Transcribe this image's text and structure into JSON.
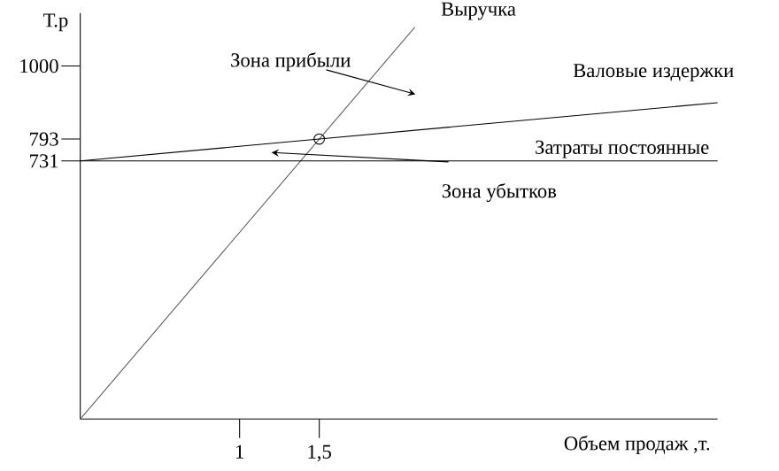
{
  "chart_data": {
    "type": "line",
    "xlabel": "Объем продаж ,т.",
    "ylabel": "Т.р",
    "xlim": [
      0,
      4
    ],
    "ylim": [
      0,
      1150
    ],
    "xticks": [
      1,
      {
        "value": 1.5,
        "label": "1,5"
      }
    ],
    "yticks": [
      731,
      793,
      1000
    ],
    "series": [
      {
        "name": "Выручка",
        "color": "#606060",
        "x": [
          0,
          1.5,
          2.1
        ],
        "values": [
          0,
          793,
          1110
        ],
        "marker": "none"
      },
      {
        "name": "Валовые издержки",
        "color": "#000000",
        "x": [
          0,
          1.5,
          4
        ],
        "values": [
          731,
          793,
          896
        ],
        "marker": "none"
      },
      {
        "type": "scatter",
        "color": "#000000",
        "x": [
          1.5
        ],
        "values": [
          793
        ],
        "marker": "circle"
      }
    ],
    "ref_lines": [
      {
        "axis": "y",
        "value": 731,
        "label": "Затраты постоянные",
        "color": "#000000"
      }
    ],
    "annotations": [
      "Зона прибыли",
      {
        "text": "Зона убытков",
        "x": 1.2,
        "y": 755
      }
    ]
  }
}
